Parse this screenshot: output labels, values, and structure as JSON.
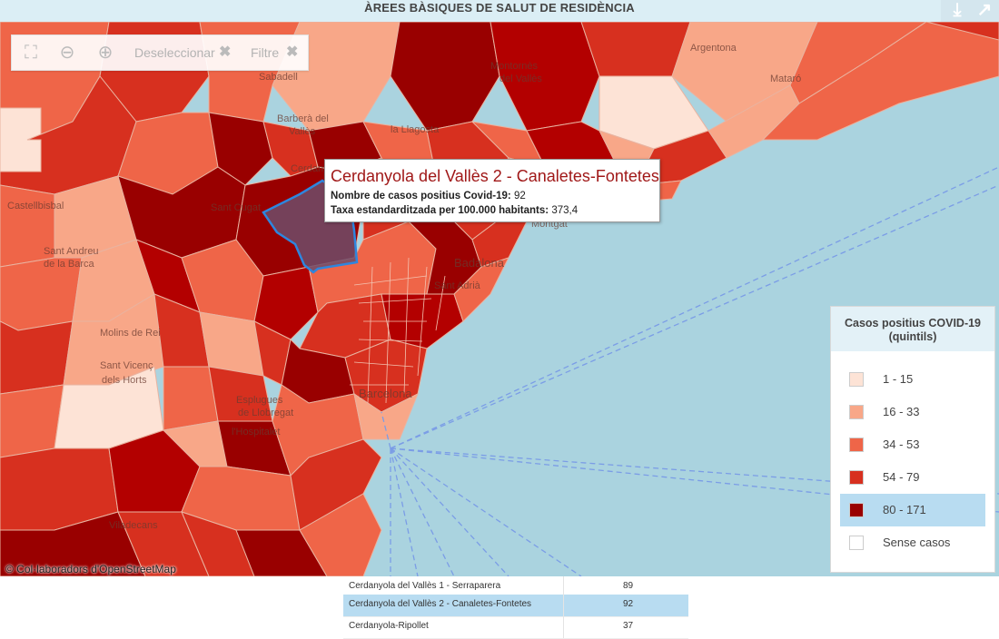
{
  "header": {
    "title": "ÀREES BÀSIQUES DE SALUT DE RESIDÈNCIA",
    "download_icon": "download-icon",
    "expand_icon": "expand-arrow-icon"
  },
  "toolbar": {
    "fullscreen_icon": "fullscreen-icon",
    "zoom_out_icon": "zoom-out-icon",
    "zoom_in_icon": "zoom-in-icon",
    "deselect_label": "Deseleccionar",
    "filter_label": "Filtre"
  },
  "tooltip": {
    "title": "Cerdanyola del Vallès 2 - Canaletes-Fontetes",
    "line1_label": "Nombre de casos positius Covid-19:",
    "line1_value": "92",
    "line2_label": "Taxa estandarditzada per 100.000 habitants:",
    "line2_value": "373,4"
  },
  "map_labels": {
    "montornes": "Montornès",
    "del_valles": "del Vallès",
    "argentona": "Argentona",
    "mataro": "Mataró",
    "barbera": "Barberà del",
    "valles": "Vallès",
    "llagosta": "la Llagosta",
    "cerdanyola": "Cerdanyola",
    "castellbisbal": "Castellbisbal",
    "sant_andreu": "Sant Andreu",
    "de_la_barca": "de la Barca",
    "badalona": "Badalona",
    "molins": "Molins de Rei",
    "sant_vicenc": "Sant Vicenç",
    "dels_horts": "dels Horts",
    "esplugues": "Esplugues",
    "de_llobregat": "de Llobregat",
    "hospitalet": "l'Hospitalet",
    "barcelona": "Barcelona",
    "sant_cugat": "Sant Cugat",
    "viladecans": "Viladecans",
    "montgat": "Montgat",
    "sabadell": "Sabadell",
    "sant_adria": "Sant Adrià"
  },
  "attribution": "© Col·laboradors d'OpenStreetMap",
  "legend": {
    "title_line1": "Casos positius COVID-19",
    "title_line2": "(quintils)",
    "items": [
      {
        "label": "1 - 15",
        "color": "#fde3d6"
      },
      {
        "label": "16 - 33",
        "color": "#f8a788"
      },
      {
        "label": "34 - 53",
        "color": "#ef6548"
      },
      {
        "label": "54 - 79",
        "color": "#d7301f"
      },
      {
        "label": "80 - 171",
        "color": "#990000",
        "selected": true
      },
      {
        "label": "Sense casos",
        "color": "#ffffff"
      }
    ]
  },
  "table": {
    "rows": [
      {
        "name": "Cerdanyola del Vallès 1 - Serraparera",
        "value": "89"
      },
      {
        "name": "Cerdanyola del Vallès 2 - Canaletes-Fontetes",
        "value": "92",
        "selected": true
      },
      {
        "name": "Cerdanyola-Ripollet",
        "value": "37"
      }
    ]
  }
}
